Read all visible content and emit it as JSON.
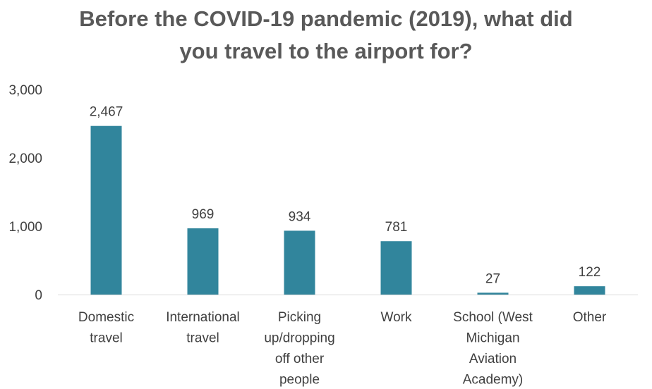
{
  "chart_data": {
    "type": "bar",
    "title_lines": [
      "Before the COVID-19 pandemic (2019), what did",
      "you travel to the airport for?"
    ],
    "categories": [
      [
        "Domestic",
        "travel"
      ],
      [
        "International",
        "travel"
      ],
      [
        "Picking",
        "up/dropping",
        "off other",
        "people"
      ],
      [
        "Work"
      ],
      [
        "School (West",
        "Michigan",
        "Aviation",
        "Academy)"
      ],
      [
        "Other"
      ]
    ],
    "values": [
      2467,
      969,
      934,
      781,
      27,
      122
    ],
    "data_labels": [
      "2,467",
      "969",
      "934",
      "781",
      "27",
      "122"
    ],
    "yticks": [
      0,
      1000,
      2000,
      3000
    ],
    "ytick_labels": [
      "0",
      "1,000",
      "2,000",
      "3,000"
    ],
    "ylim": [
      0,
      3000
    ],
    "xlabel": "",
    "ylabel": "",
    "grid": false,
    "legend": "none",
    "bar_color": "#31859C",
    "axis_color": "#D9D9D9"
  }
}
